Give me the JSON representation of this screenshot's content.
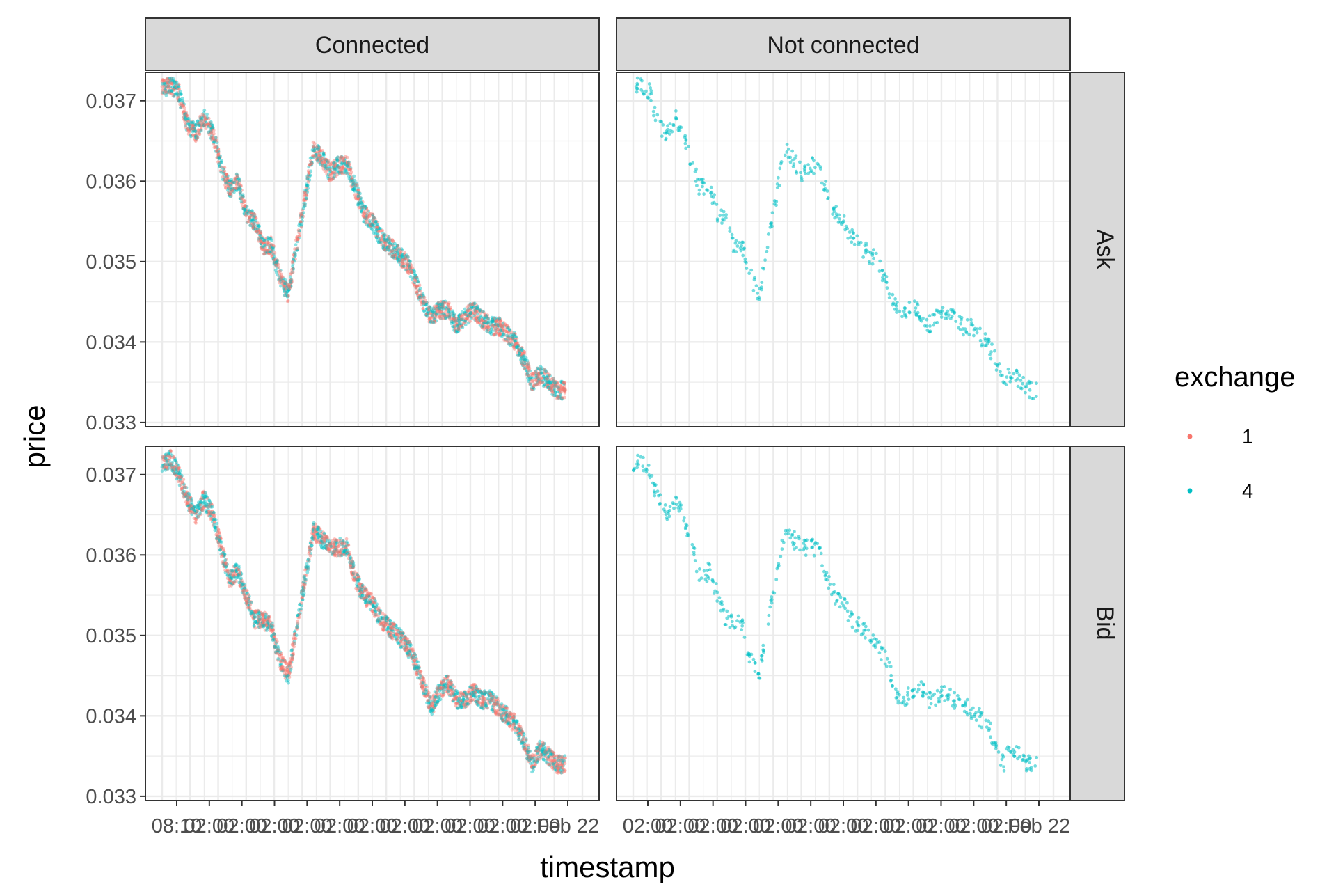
{
  "chart_data": {
    "type": "scatter",
    "xlabel": "timestamp",
    "ylabel": "price",
    "ylim": [
      0.033,
      0.0373
    ],
    "y_ticks": [
      0.033,
      0.034,
      0.035,
      0.036,
      0.037
    ],
    "y_tick_labels": [
      "0.033",
      "0.034",
      "0.035",
      "0.036",
      "0.037"
    ],
    "x_tick_labels": [
      "08:10",
      "02:00",
      "Feb 22"
    ],
    "grid": true,
    "legend": {
      "title": "exchange",
      "position": "right",
      "entries": [
        "1",
        "4"
      ]
    },
    "colors": {
      "1": "#F8766D",
      "4": "#00BFC4"
    },
    "facet_columns": [
      "Connected",
      "Not connected"
    ],
    "facet_rows": [
      "Ask",
      "Bid"
    ],
    "x_range": [
      0,
      100
    ],
    "series": [
      {
        "name": "Ask",
        "x": [
          0,
          2,
          4,
          6,
          8,
          10,
          12,
          14,
          16,
          18,
          20,
          22,
          24,
          26,
          28,
          30,
          32,
          34,
          36,
          38,
          40,
          42,
          44,
          46,
          48,
          50,
          52,
          54,
          56,
          58,
          60,
          62,
          64,
          66,
          68,
          70,
          72,
          74,
          76,
          78,
          80,
          82,
          84,
          86,
          88,
          90,
          92,
          94,
          96
        ],
        "y": [
          0.03715,
          0.0372,
          0.0371,
          0.0367,
          0.0366,
          0.0368,
          0.0366,
          0.0362,
          0.0359,
          0.036,
          0.0356,
          0.0355,
          0.0352,
          0.0352,
          0.0348,
          0.0346,
          0.0352,
          0.0358,
          0.0364,
          0.0363,
          0.0361,
          0.0362,
          0.0362,
          0.0359,
          0.0356,
          0.0355,
          0.0353,
          0.0352,
          0.0351,
          0.035,
          0.0348,
          0.0345,
          0.0343,
          0.0344,
          0.0344,
          0.0342,
          0.0343,
          0.0344,
          0.0343,
          0.0342,
          0.0342,
          0.0341,
          0.034,
          0.0338,
          0.0335,
          0.0336,
          0.0335,
          0.0334,
          0.0334
        ]
      },
      {
        "name": "Bid",
        "x": [
          0,
          2,
          4,
          6,
          8,
          10,
          12,
          14,
          16,
          18,
          20,
          22,
          24,
          26,
          28,
          30,
          32,
          34,
          36,
          38,
          40,
          42,
          44,
          46,
          48,
          50,
          52,
          54,
          56,
          58,
          60,
          62,
          64,
          66,
          68,
          70,
          72,
          74,
          76,
          78,
          80,
          82,
          84,
          86,
          88,
          90,
          92,
          94,
          96
        ],
        "y": [
          0.03712,
          0.0372,
          0.037,
          0.0367,
          0.0365,
          0.0367,
          0.0365,
          0.0361,
          0.0357,
          0.0358,
          0.0355,
          0.0352,
          0.0352,
          0.0351,
          0.0347,
          0.0345,
          0.0351,
          0.0357,
          0.0363,
          0.0362,
          0.0361,
          0.0361,
          0.0361,
          0.0357,
          0.0355,
          0.0354,
          0.0352,
          0.0351,
          0.035,
          0.0349,
          0.0347,
          0.0344,
          0.0341,
          0.0343,
          0.0344,
          0.0342,
          0.0342,
          0.0343,
          0.0342,
          0.0342,
          0.0341,
          0.034,
          0.0339,
          0.0337,
          0.0334,
          0.0336,
          0.0335,
          0.0334,
          0.0334
        ]
      }
    ]
  }
}
